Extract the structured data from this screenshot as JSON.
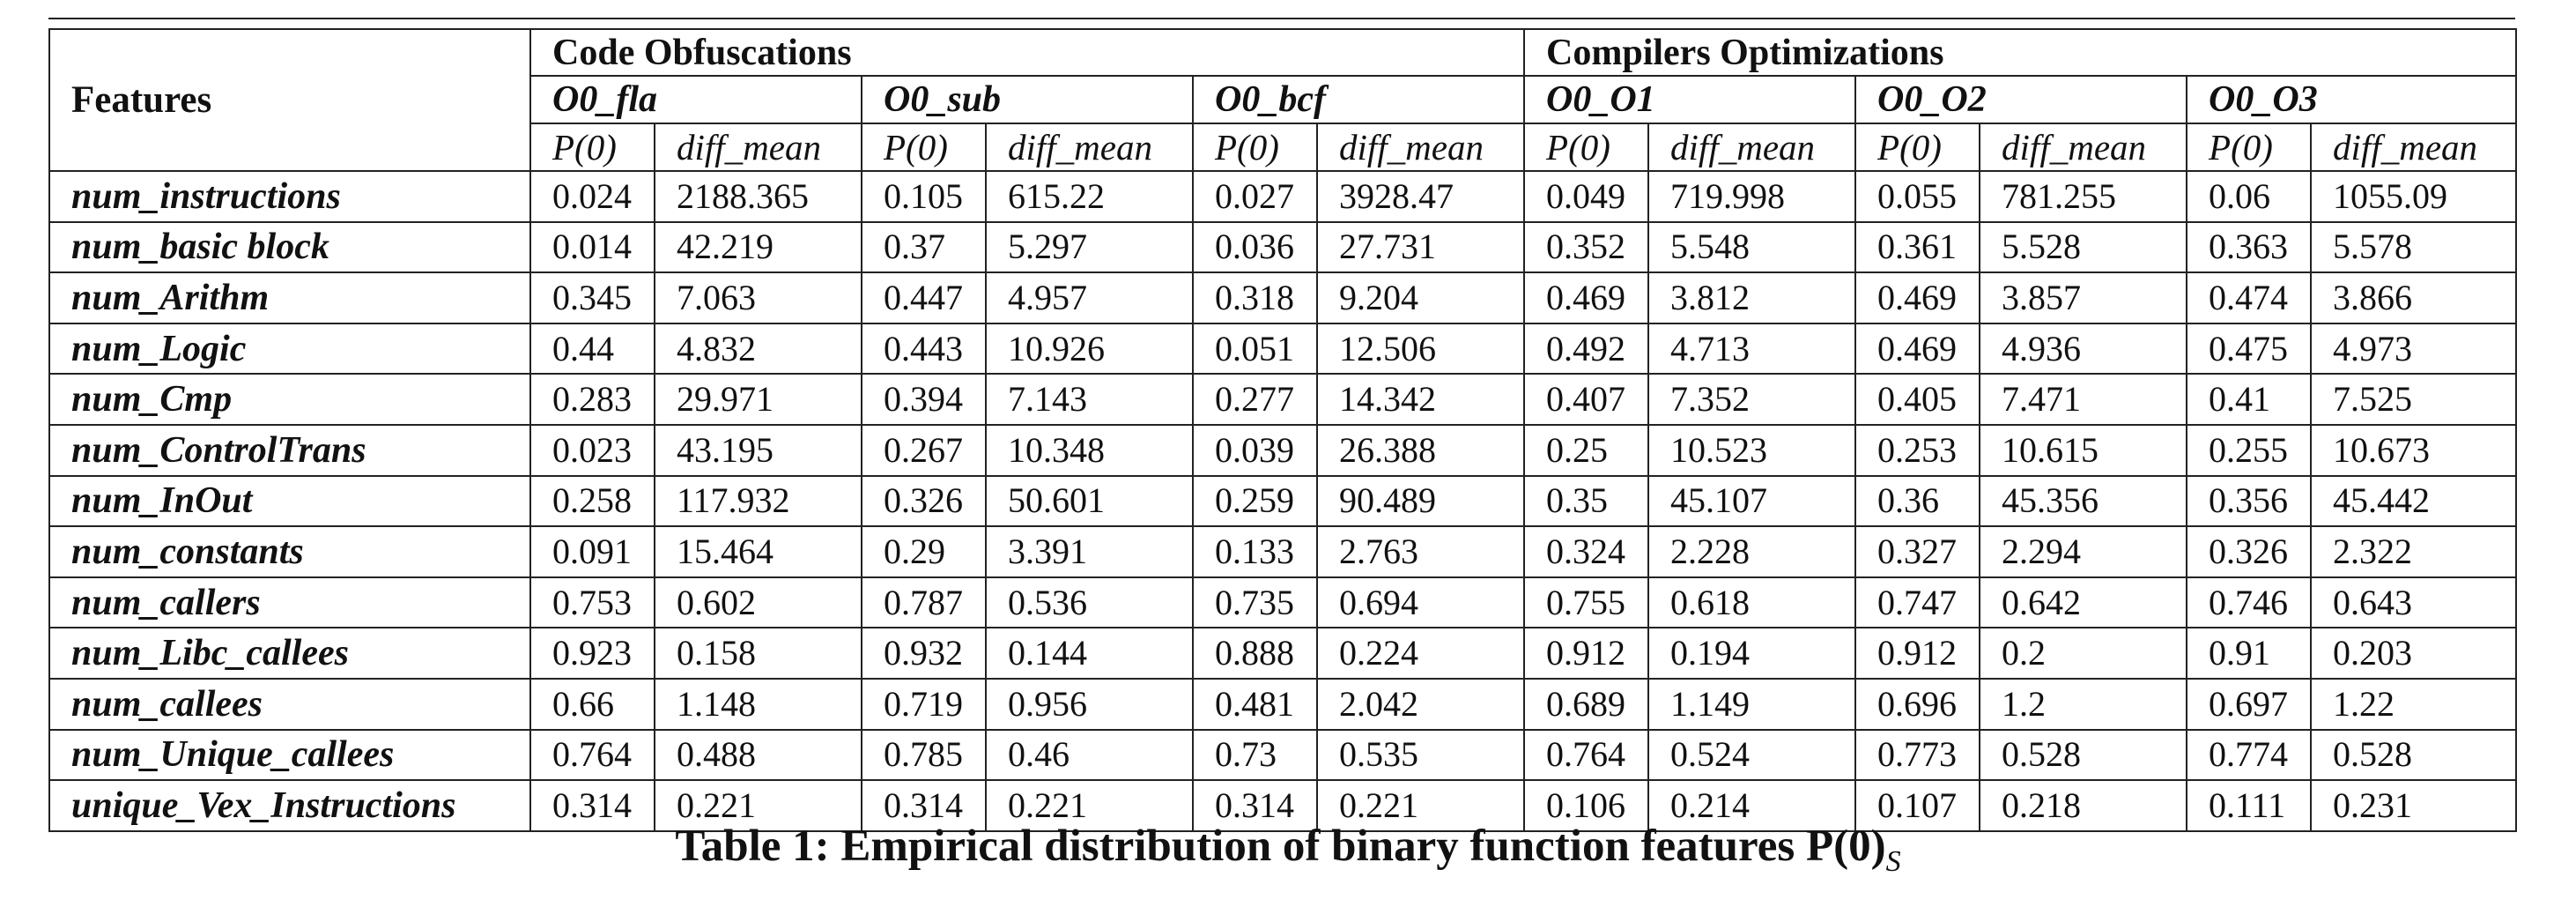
{
  "table": {
    "group_headers": [
      "Code Obfuscations",
      "Compilers Optimizations"
    ],
    "features_header": "Features",
    "settings": [
      "O0_fla",
      "O0_sub",
      "O0_bcf",
      "O0_O1",
      "O0_O2",
      "O0_O3"
    ],
    "column_labels": [
      "P(0)",
      "diff_mean"
    ],
    "rows": [
      {
        "feature": "num_instructions",
        "values": [
          "0.024",
          "2188.365",
          "0.105",
          "615.22",
          "0.027",
          "3928.47",
          "0.049",
          "719.998",
          "0.055",
          "781.255",
          "0.06",
          "1055.09"
        ]
      },
      {
        "feature": "num_basic block",
        "values": [
          "0.014",
          "42.219",
          "0.37",
          "5.297",
          "0.036",
          "27.731",
          "0.352",
          "5.548",
          "0.361",
          "5.528",
          "0.363",
          "5.578"
        ]
      },
      {
        "feature": "num_Arithm",
        "values": [
          "0.345",
          "7.063",
          "0.447",
          "4.957",
          "0.318",
          "9.204",
          "0.469",
          "3.812",
          "0.469",
          "3.857",
          "0.474",
          "3.866"
        ]
      },
      {
        "feature": "num_Logic",
        "values": [
          "0.44",
          "4.832",
          "0.443",
          "10.926",
          "0.051",
          "12.506",
          "0.492",
          "4.713",
          "0.469",
          "4.936",
          "0.475",
          "4.973"
        ]
      },
      {
        "feature": "num_Cmp",
        "values": [
          "0.283",
          "29.971",
          "0.394",
          "7.143",
          "0.277",
          "14.342",
          "0.407",
          "7.352",
          "0.405",
          "7.471",
          "0.41",
          "7.525"
        ]
      },
      {
        "feature": "num_ControlTrans",
        "values": [
          "0.023",
          "43.195",
          "0.267",
          "10.348",
          "0.039",
          "26.388",
          "0.25",
          "10.523",
          "0.253",
          "10.615",
          "0.255",
          "10.673"
        ]
      },
      {
        "feature": "num_InOut",
        "values": [
          "0.258",
          "117.932",
          "0.326",
          "50.601",
          "0.259",
          "90.489",
          "0.35",
          "45.107",
          "0.36",
          "45.356",
          "0.356",
          "45.442"
        ]
      },
      {
        "feature": "num_constants",
        "values": [
          "0.091",
          "15.464",
          "0.29",
          "3.391",
          "0.133",
          "2.763",
          "0.324",
          "2.228",
          "0.327",
          "2.294",
          "0.326",
          "2.322"
        ]
      },
      {
        "feature": "num_callers",
        "values": [
          "0.753",
          "0.602",
          "0.787",
          "0.536",
          "0.735",
          "0.694",
          "0.755",
          "0.618",
          "0.747",
          "0.642",
          "0.746",
          "0.643"
        ]
      },
      {
        "feature": "num_Libc_callees",
        "values": [
          "0.923",
          "0.158",
          "0.932",
          "0.144",
          "0.888",
          "0.224",
          "0.912",
          "0.194",
          "0.912",
          "0.2",
          "0.91",
          "0.203"
        ]
      },
      {
        "feature": "num_callees",
        "values": [
          "0.66",
          "1.148",
          "0.719",
          "0.956",
          "0.481",
          "2.042",
          "0.689",
          "1.149",
          "0.696",
          "1.2",
          "0.697",
          "1.22"
        ]
      },
      {
        "feature": "num_Unique_callees",
        "values": [
          "0.764",
          "0.488",
          "0.785",
          "0.46",
          "0.73",
          "0.535",
          "0.764",
          "0.524",
          "0.773",
          "0.528",
          "0.774",
          "0.528"
        ]
      },
      {
        "feature": "unique_Vex_Instructions",
        "values": [
          "0.314",
          "0.221",
          "0.314",
          "0.221",
          "0.314",
          "0.221",
          "0.106",
          "0.214",
          "0.107",
          "0.218",
          "0.111",
          "0.231"
        ]
      }
    ]
  },
  "caption": {
    "text": "Table 1: Empirical distribution of binary function features P(0)",
    "subscript": "S"
  }
}
